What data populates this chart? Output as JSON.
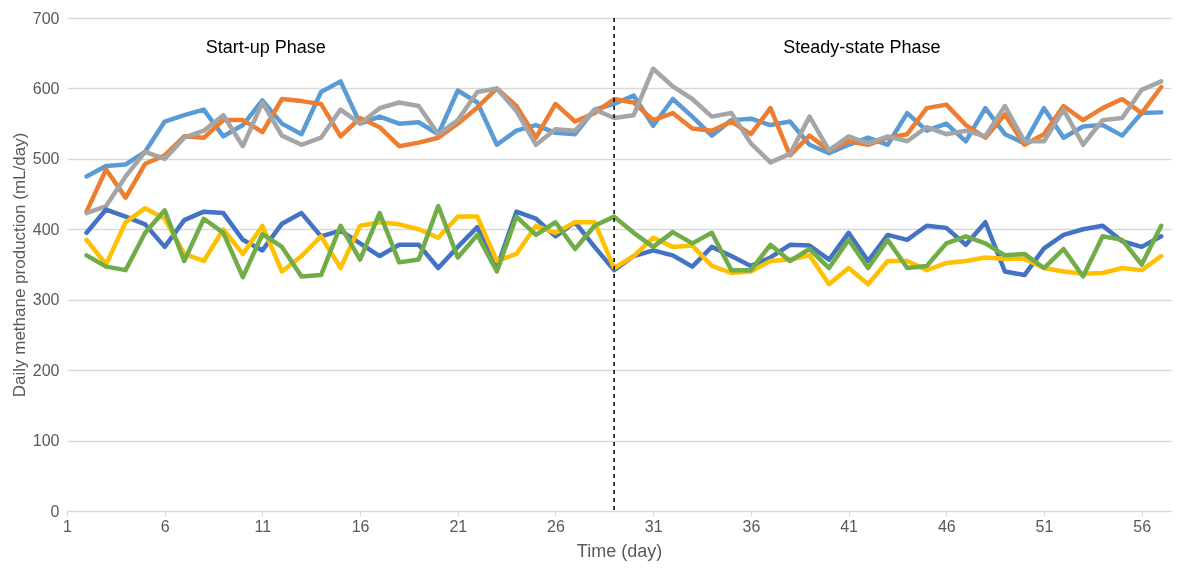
{
  "chart_data": {
    "type": "line",
    "xlabel": "Time (day)",
    "ylabel": "Daily methane production (mL/day)",
    "x": [
      2,
      3,
      4,
      5,
      6,
      7,
      8,
      9,
      10,
      11,
      12,
      13,
      14,
      15,
      16,
      17,
      18,
      19,
      20,
      21,
      22,
      23,
      24,
      25,
      26,
      27,
      28,
      29,
      30,
      31,
      32,
      33,
      34,
      35,
      36,
      37,
      38,
      39,
      40,
      41,
      42,
      43,
      44,
      45,
      46,
      47,
      48,
      49,
      50,
      51,
      52,
      53,
      54,
      55,
      56,
      57
    ],
    "xlim": [
      1,
      57.5
    ],
    "xticks": [
      1,
      6,
      11,
      16,
      21,
      26,
      31,
      36,
      41,
      46,
      51,
      56
    ],
    "ylim": [
      0,
      700
    ],
    "yticks": [
      0,
      100,
      200,
      300,
      400,
      500,
      600,
      700
    ],
    "grid": "y",
    "line_style": "solid",
    "marker": "none",
    "series": [
      {
        "color": "#5b9bd5",
        "values": [
          475,
          490,
          492,
          510,
          553,
          562,
          570,
          532,
          548,
          583,
          550,
          535,
          595,
          610,
          550,
          560,
          550,
          552,
          535,
          597,
          580,
          520,
          540,
          548,
          537,
          535,
          570,
          578,
          590,
          547,
          585,
          560,
          533,
          555,
          557,
          548,
          553,
          520,
          508,
          520,
          530,
          520,
          565,
          540,
          550,
          525,
          572,
          535,
          522,
          572,
          530,
          546,
          548,
          533,
          565,
          566
        ]
      },
      {
        "color": "#ed7d31",
        "values": [
          425,
          485,
          445,
          493,
          505,
          532,
          530,
          555,
          555,
          538,
          585,
          582,
          578,
          532,
          558,
          545,
          518,
          523,
          530,
          550,
          573,
          600,
          575,
          530,
          578,
          553,
          565,
          585,
          580,
          555,
          565,
          543,
          540,
          553,
          535,
          572,
          505,
          533,
          512,
          525,
          520,
          530,
          535,
          572,
          577,
          548,
          530,
          563,
          520,
          535,
          575,
          555,
          572,
          585,
          565,
          602
        ]
      },
      {
        "color": "#a5a5a5",
        "values": [
          423,
          433,
          475,
          510,
          500,
          530,
          540,
          562,
          518,
          580,
          533,
          520,
          530,
          570,
          550,
          572,
          580,
          575,
          535,
          555,
          595,
          600,
          568,
          520,
          542,
          540,
          570,
          558,
          562,
          628,
          603,
          585,
          560,
          565,
          522,
          495,
          507,
          560,
          512,
          532,
          522,
          532,
          525,
          545,
          535,
          540,
          532,
          575,
          525,
          525,
          570,
          520,
          555,
          558,
          598,
          610
        ]
      },
      {
        "color": "#4472c4",
        "values": [
          395,
          428,
          418,
          407,
          375,
          413,
          425,
          423,
          385,
          370,
          408,
          423,
          390,
          398,
          380,
          362,
          378,
          378,
          345,
          375,
          403,
          345,
          425,
          415,
          390,
          410,
          375,
          342,
          362,
          370,
          363,
          347,
          375,
          362,
          348,
          360,
          378,
          377,
          357,
          395,
          355,
          392,
          385,
          405,
          402,
          378,
          410,
          340,
          335,
          373,
          392,
          400,
          405,
          383,
          375,
          390
        ]
      },
      {
        "color": "#ffc000",
        "values": [
          385,
          350,
          410,
          430,
          415,
          365,
          355,
          400,
          365,
          405,
          340,
          362,
          390,
          345,
          405,
          410,
          407,
          400,
          388,
          418,
          418,
          355,
          365,
          405,
          395,
          410,
          410,
          345,
          362,
          388,
          375,
          377,
          348,
          338,
          340,
          355,
          357,
          363,
          322,
          345,
          322,
          355,
          355,
          342,
          352,
          355,
          360,
          358,
          358,
          345,
          340,
          337,
          338,
          345,
          342,
          362
        ]
      },
      {
        "color": "#70ad47",
        "values": [
          363,
          347,
          342,
          395,
          427,
          355,
          415,
          395,
          332,
          393,
          375,
          333,
          335,
          405,
          357,
          423,
          353,
          357,
          433,
          360,
          392,
          340,
          418,
          392,
          410,
          372,
          405,
          418,
          395,
          375,
          396,
          380,
          395,
          342,
          342,
          378,
          355,
          372,
          345,
          385,
          345,
          385,
          345,
          348,
          380,
          390,
          380,
          363,
          365,
          345,
          372,
          333,
          390,
          385,
          350,
          405
        ]
      }
    ],
    "ref_lines": [
      {
        "axis": "x",
        "value": 29,
        "color": "#000000",
        "line_style": "dashed"
      }
    ],
    "annotations": [
      "Start-up Phase",
      "Steady-state Phase"
    ]
  }
}
